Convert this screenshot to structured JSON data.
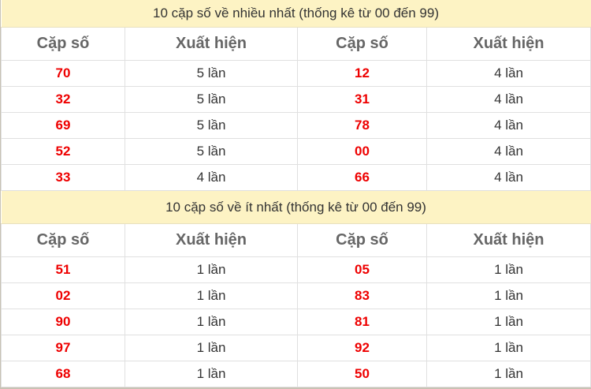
{
  "tables": [
    {
      "title": "10 cặp số về nhiều nhất (thống kê từ 00 đến 99)",
      "headers": [
        "Cặp số",
        "Xuất hiện",
        "Cặp số",
        "Xuất hiện"
      ],
      "rows": [
        [
          "70",
          "5 lần",
          "12",
          "4 lần"
        ],
        [
          "32",
          "5 lần",
          "31",
          "4 lần"
        ],
        [
          "69",
          "5 lần",
          "78",
          "4 lần"
        ],
        [
          "52",
          "5 lần",
          "00",
          "4 lần"
        ],
        [
          "33",
          "4 lần",
          "66",
          "4 lần"
        ]
      ]
    },
    {
      "title": "10 cặp số về ít nhất (thống kê từ 00 đến 99)",
      "headers": [
        "Cặp số",
        "Xuất hiện",
        "Cặp số",
        "Xuất hiện"
      ],
      "rows": [
        [
          "51",
          "1 lần",
          "05",
          "1 lần"
        ],
        [
          "02",
          "1 lần",
          "83",
          "1 lần"
        ],
        [
          "90",
          "1 lần",
          "81",
          "1 lần"
        ],
        [
          "97",
          "1 lần",
          "92",
          "1 lần"
        ],
        [
          "68",
          "1 lần",
          "50",
          "1 lần"
        ]
      ]
    }
  ],
  "colors": {
    "title_bg": "#fdf3c4",
    "number": "#ee0000",
    "header": "#666666"
  }
}
